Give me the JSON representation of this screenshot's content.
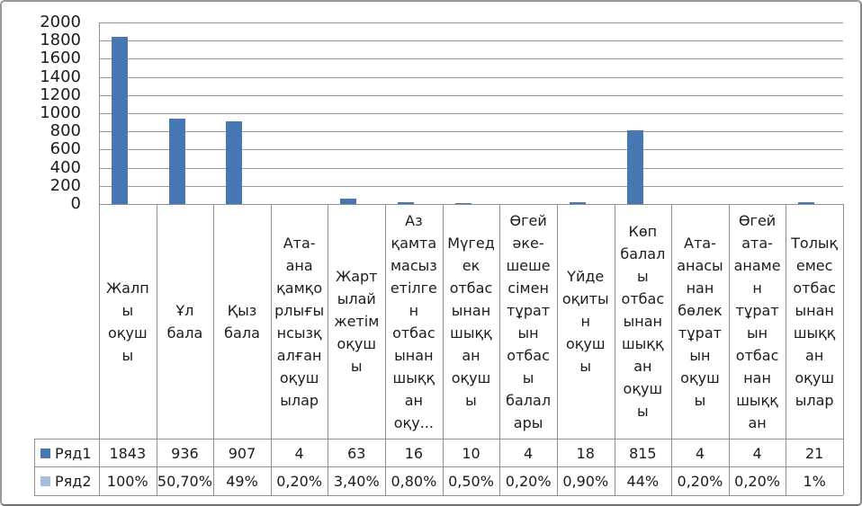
{
  "chart_data": {
    "type": "bar",
    "title": "",
    "grid": true,
    "legend_position": "data-table-left",
    "y_axis": {
      "min": 0,
      "max": 2000,
      "tick_step": 200,
      "tick_labels": [
        "2000",
        "1800",
        "1600",
        "1400",
        "1200",
        "1000",
        "800",
        "600",
        "400",
        "200",
        "0"
      ]
    },
    "categories": [
      {
        "name": "Жалпы оқушы",
        "lines": [
          "Жалп",
          "ы",
          "оқуш",
          "ы"
        ]
      },
      {
        "name": "Ұл бала",
        "lines": [
          "Ұл",
          "бала"
        ]
      },
      {
        "name": "Қыз бала",
        "lines": [
          "Қыз",
          "бала"
        ]
      },
      {
        "name": "Ата-ана қамқорлығынсызқалған оқушылар",
        "lines": [
          "Ата-",
          "ана",
          "қамқо",
          "рлығы",
          "нсызқ",
          "алған",
          "оқуш",
          "ылар"
        ]
      },
      {
        "name": "Жартылай жетім оқушы",
        "lines": [
          "Жарт",
          "ылай",
          "жетім",
          "оқуш",
          "ы"
        ]
      },
      {
        "name": "Аз қамтамасыз етілген отбасынан шыққан оқу...",
        "lines": [
          "Аз",
          "қамта",
          "масыз",
          "етілге",
          "н",
          "отбас",
          "ынан",
          "шыққ",
          "ан",
          "оқу..."
        ]
      },
      {
        "name": "Мүгедек отбасынан шыққан оқушы",
        "lines": [
          "Мүгед",
          "ек",
          "отбас",
          "ынан",
          "шыққ",
          "ан",
          "оқуш",
          "ы"
        ]
      },
      {
        "name": "Өгей әке-шешесімен тұратын отбасы балалары",
        "lines": [
          "Өгей",
          "әке-",
          "шеше",
          "сімен",
          "тұрат",
          "ын",
          "отбас",
          "ы",
          "балал",
          "ары"
        ]
      },
      {
        "name": "Үйде оқитын оқушы",
        "lines": [
          "Үйде",
          "оқиты",
          "н",
          "оқуш",
          "ы"
        ]
      },
      {
        "name": "Көп балалы отбасынан шыққан оқушы",
        "lines": [
          "Көп",
          "балал",
          "ы",
          "отбас",
          "ынан",
          "шыққ",
          "ан",
          "оқуш",
          "ы"
        ]
      },
      {
        "name": "Ата-анасынан бөлек тұратын оқушы",
        "lines": [
          "Ата-",
          "анасы",
          "нан",
          "бөлек",
          "тұрат",
          "ын",
          "оқуш",
          "ы"
        ]
      },
      {
        "name": "Өгей ата-анамен тұратын отбаснан шыққан",
        "lines": [
          "Өгей",
          "ата-",
          "анаме",
          "н",
          "тұрат",
          "ын",
          "отбас",
          "нан",
          "шыққ",
          "ан"
        ]
      },
      {
        "name": "Толық емес отбасынан шыққан оқушылар",
        "lines": [
          "Толық",
          "емес",
          "отбас",
          "ынан",
          "шыққ",
          "ан",
          "оқуш",
          "ылар"
        ]
      }
    ],
    "series": [
      {
        "name": "Ряд1",
        "color": "#4677B2",
        "values": [
          1843,
          936,
          907,
          4,
          63,
          16,
          10,
          4,
          18,
          815,
          4,
          4,
          21
        ],
        "display": [
          "1843",
          "936",
          "907",
          "4",
          "63",
          "16",
          "10",
          "4",
          "18",
          "815",
          "4",
          "4",
          "21"
        ]
      },
      {
        "name": "Ряд2",
        "color": "#A7BCDF",
        "values": [
          1.0,
          0.507,
          0.49,
          0.002,
          0.034,
          0.008,
          0.005,
          0.002,
          0.009,
          0.44,
          0.002,
          0.002,
          0.01
        ],
        "display": [
          "100%",
          "50,70%",
          "49%",
          "0,20%",
          "3,40%",
          "0,80%",
          "0,50%",
          "0,20%",
          "0,90%",
          "44%",
          "0,20%",
          "0,20%",
          "1%"
        ]
      }
    ]
  },
  "colors": {
    "bar": "#4677B2",
    "series2_swatch": "#A7BCDF",
    "gridline": "#9a9a9a",
    "table_border": "#8f8f8f",
    "text": "#1c1c1c",
    "background": "#ffffff"
  }
}
